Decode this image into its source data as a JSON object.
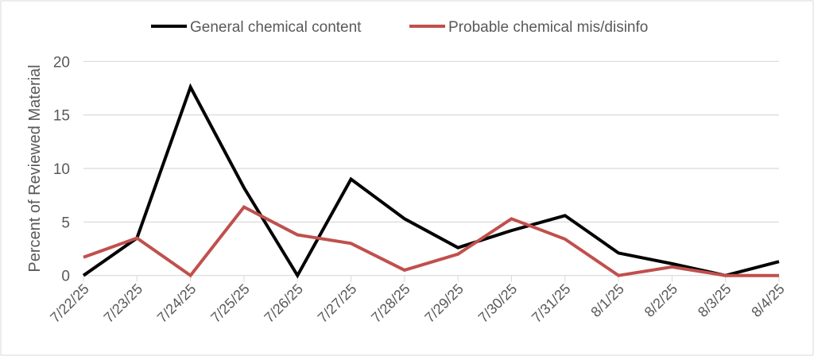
{
  "chart_data": {
    "type": "line",
    "title": "",
    "xlabel": "",
    "ylabel": "Percent of Reviewed Material",
    "ylim": [
      0,
      20
    ],
    "yticks": [
      0,
      5,
      10,
      15,
      20
    ],
    "grid": true,
    "legend_position": "top-center",
    "categories": [
      "7/22/25",
      "7/23/25",
      "7/24/25",
      "7/25/25",
      "7/26/25",
      "7/27/25",
      "7/28/25",
      "7/29/25",
      "7/30/25",
      "7/31/25",
      "8/1/25",
      "8/2/25",
      "8/3/25",
      "8/4/25"
    ],
    "series": [
      {
        "name": "General chemical content",
        "color": "#000000",
        "values": [
          0,
          3.5,
          17.6,
          8.2,
          0,
          9.0,
          5.3,
          2.6,
          4.2,
          5.6,
          2.1,
          1.1,
          0,
          1.3
        ]
      },
      {
        "name": "Probable chemical mis/disinfo",
        "color": "#c0504d",
        "values": [
          1.7,
          3.5,
          0,
          6.4,
          3.8,
          3.0,
          0.5,
          2.0,
          5.3,
          3.4,
          0,
          0.8,
          0,
          0
        ]
      }
    ]
  }
}
